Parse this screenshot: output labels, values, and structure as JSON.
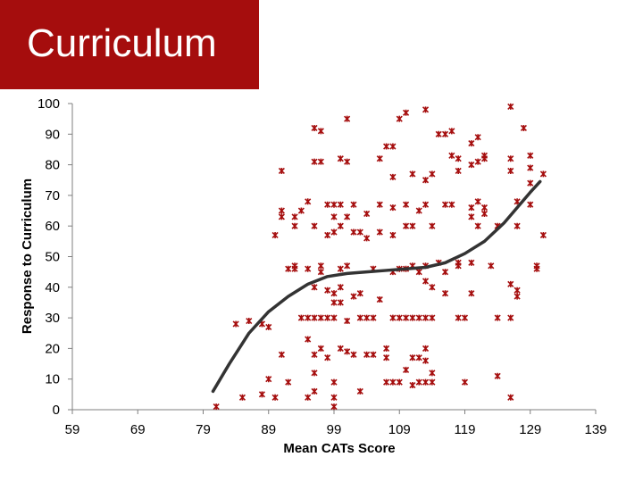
{
  "slide": {
    "title": "Curriculum",
    "title_bg": "#a50d0d",
    "title_color": "#ffffff"
  },
  "chart_data": {
    "type": "scatter",
    "xlabel": "Mean CATs Score",
    "ylabel": "Response to Curriculum",
    "xlim": [
      59,
      139
    ],
    "ylim": [
      0,
      100
    ],
    "xticks": [
      59,
      69,
      79,
      89,
      99,
      109,
      119,
      129,
      139
    ],
    "yticks": [
      0,
      10,
      20,
      30,
      40,
      50,
      60,
      70,
      80,
      90,
      100
    ],
    "grid": false,
    "marker_color": "#a50d0d",
    "trend_color": "#333333",
    "points": [
      [
        81,
        1
      ],
      [
        84,
        28
      ],
      [
        85,
        4
      ],
      [
        86,
        29
      ],
      [
        88,
        5
      ],
      [
        88,
        28
      ],
      [
        89,
        27
      ],
      [
        89,
        10
      ],
      [
        90,
        57
      ],
      [
        90,
        4
      ],
      [
        91,
        78
      ],
      [
        91,
        65
      ],
      [
        91,
        63
      ],
      [
        91,
        18
      ],
      [
        92,
        46
      ],
      [
        92,
        9
      ],
      [
        93,
        47
      ],
      [
        93,
        46
      ],
      [
        93,
        63
      ],
      [
        93,
        60
      ],
      [
        94,
        65
      ],
      [
        94,
        30
      ],
      [
        95,
        46
      ],
      [
        95,
        68
      ],
      [
        95,
        30
      ],
      [
        95,
        23
      ],
      [
        95,
        4
      ],
      [
        96,
        92
      ],
      [
        96,
        81
      ],
      [
        96,
        60
      ],
      [
        96,
        40
      ],
      [
        96,
        30
      ],
      [
        96,
        18
      ],
      [
        96,
        12
      ],
      [
        96,
        6
      ],
      [
        97,
        91
      ],
      [
        97,
        81
      ],
      [
        97,
        47
      ],
      [
        97,
        45
      ],
      [
        97,
        30
      ],
      [
        97,
        20
      ],
      [
        98,
        67
      ],
      [
        98,
        57
      ],
      [
        98,
        39
      ],
      [
        98,
        30
      ],
      [
        98,
        17
      ],
      [
        99,
        67
      ],
      [
        99,
        63
      ],
      [
        99,
        58
      ],
      [
        99,
        38
      ],
      [
        99,
        35
      ],
      [
        99,
        30
      ],
      [
        99,
        9
      ],
      [
        99,
        4
      ],
      [
        99,
        1
      ],
      [
        100,
        82
      ],
      [
        100,
        67
      ],
      [
        100,
        60
      ],
      [
        100,
        46
      ],
      [
        100,
        40
      ],
      [
        100,
        35
      ],
      [
        100,
        20
      ],
      [
        101,
        95
      ],
      [
        101,
        81
      ],
      [
        101,
        63
      ],
      [
        101,
        47
      ],
      [
        101,
        29
      ],
      [
        101,
        19
      ],
      [
        102,
        67
      ],
      [
        102,
        58
      ],
      [
        102,
        37
      ],
      [
        102,
        18
      ],
      [
        103,
        58
      ],
      [
        103,
        38
      ],
      [
        103,
        30
      ],
      [
        103,
        6
      ],
      [
        104,
        64
      ],
      [
        104,
        56
      ],
      [
        104,
        30
      ],
      [
        104,
        18
      ],
      [
        105,
        46
      ],
      [
        105,
        30
      ],
      [
        105,
        18
      ],
      [
        106,
        67
      ],
      [
        106,
        82
      ],
      [
        106,
        36
      ],
      [
        106,
        58
      ],
      [
        107,
        86
      ],
      [
        107,
        20
      ],
      [
        107,
        17
      ],
      [
        107,
        9
      ],
      [
        108,
        86
      ],
      [
        108,
        76
      ],
      [
        108,
        66
      ],
      [
        108,
        57
      ],
      [
        108,
        45
      ],
      [
        108,
        30
      ],
      [
        108,
        9
      ],
      [
        109,
        95
      ],
      [
        109,
        46
      ],
      [
        109,
        30
      ],
      [
        109,
        9
      ],
      [
        110,
        97
      ],
      [
        110,
        67
      ],
      [
        110,
        60
      ],
      [
        110,
        46
      ],
      [
        110,
        30
      ],
      [
        110,
        13
      ],
      [
        111,
        77
      ],
      [
        111,
        60
      ],
      [
        111,
        47
      ],
      [
        111,
        30
      ],
      [
        111,
        17
      ],
      [
        111,
        8
      ],
      [
        112,
        65
      ],
      [
        112,
        45
      ],
      [
        112,
        30
      ],
      [
        112,
        17
      ],
      [
        112,
        9
      ],
      [
        113,
        98
      ],
      [
        113,
        75
      ],
      [
        113,
        67
      ],
      [
        113,
        47
      ],
      [
        113,
        42
      ],
      [
        113,
        30
      ],
      [
        113,
        20
      ],
      [
        113,
        16
      ],
      [
        113,
        9
      ],
      [
        114,
        77
      ],
      [
        114,
        60
      ],
      [
        114,
        40
      ],
      [
        114,
        30
      ],
      [
        114,
        12
      ],
      [
        114,
        9
      ],
      [
        115,
        90
      ],
      [
        115,
        48
      ],
      [
        116,
        90
      ],
      [
        116,
        67
      ],
      [
        116,
        45
      ],
      [
        116,
        38
      ],
      [
        117,
        91
      ],
      [
        117,
        83
      ],
      [
        117,
        67
      ],
      [
        118,
        82
      ],
      [
        118,
        78
      ],
      [
        118,
        48
      ],
      [
        118,
        47
      ],
      [
        118,
        30
      ],
      [
        119,
        30
      ],
      [
        119,
        9
      ],
      [
        120,
        87
      ],
      [
        120,
        80
      ],
      [
        120,
        66
      ],
      [
        120,
        63
      ],
      [
        120,
        48
      ],
      [
        120,
        38
      ],
      [
        121,
        89
      ],
      [
        121,
        81
      ],
      [
        121,
        68
      ],
      [
        121,
        60
      ],
      [
        122,
        83
      ],
      [
        122,
        82
      ],
      [
        122,
        66
      ],
      [
        122,
        64
      ],
      [
        123,
        47
      ],
      [
        124,
        60
      ],
      [
        124,
        30
      ],
      [
        124,
        11
      ],
      [
        126,
        99
      ],
      [
        126,
        82
      ],
      [
        126,
        78
      ],
      [
        126,
        41
      ],
      [
        126,
        30
      ],
      [
        126,
        4
      ],
      [
        127,
        68
      ],
      [
        127,
        60
      ],
      [
        127,
        39
      ],
      [
        127,
        37
      ],
      [
        128,
        92
      ],
      [
        129,
        83
      ],
      [
        129,
        79
      ],
      [
        129,
        74
      ],
      [
        129,
        67
      ],
      [
        130,
        47
      ],
      [
        130,
        46
      ],
      [
        131,
        77
      ],
      [
        131,
        57
      ]
    ],
    "trend": [
      [
        80.5,
        6
      ],
      [
        83,
        15
      ],
      [
        86,
        25
      ],
      [
        89,
        32
      ],
      [
        92,
        37
      ],
      [
        95,
        41
      ],
      [
        98,
        43.5
      ],
      [
        101,
        44.5
      ],
      [
        104,
        45
      ],
      [
        107,
        45.5
      ],
      [
        110,
        46
      ],
      [
        113,
        46.5
      ],
      [
        116,
        48
      ],
      [
        119,
        51
      ],
      [
        122,
        55
      ],
      [
        125,
        61
      ],
      [
        127,
        66
      ],
      [
        129,
        71
      ],
      [
        130.5,
        74.5
      ]
    ]
  }
}
